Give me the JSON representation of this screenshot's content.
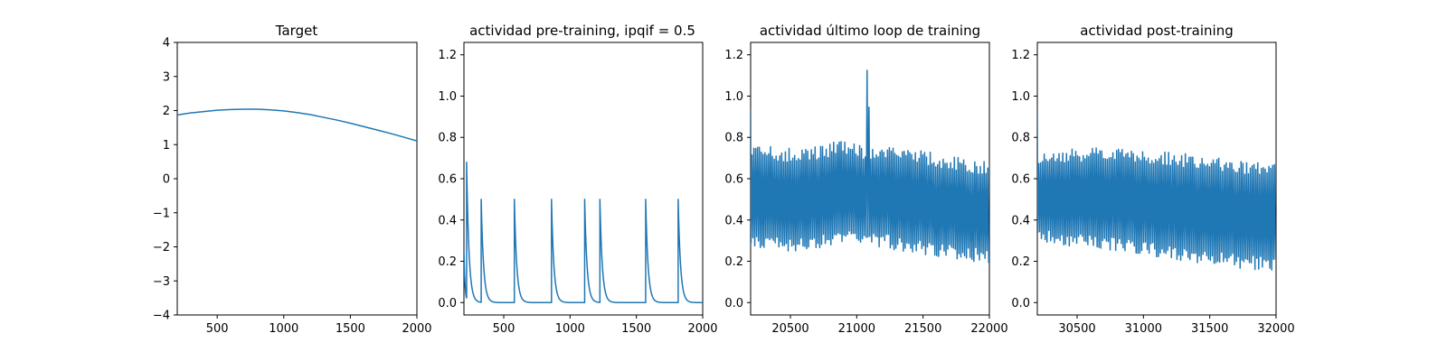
{
  "colors": {
    "line": "#1f77b4",
    "axes": "#000000",
    "background": "#ffffff"
  },
  "chart_data": [
    {
      "type": "line",
      "title": "Target",
      "xlim": [
        200,
        2000
      ],
      "ylim": [
        -4,
        4
      ],
      "xticks": [
        500,
        1000,
        1500,
        2000
      ],
      "xtick_labels": [
        "500",
        "1000",
        "1500",
        "2000"
      ],
      "yticks": [
        -4,
        -3,
        -2,
        -1,
        0,
        1,
        2,
        3,
        4
      ],
      "ytick_labels": [
        "−4",
        "−3",
        "−2",
        "−1",
        "0",
        "1",
        "2",
        "3",
        "4"
      ],
      "grid": false,
      "series": [
        {
          "x": [
            200,
            300,
            400,
            500,
            600,
            700,
            750,
            800,
            900,
            1000,
            1100,
            1200,
            1300,
            1400,
            1500,
            1600,
            1700,
            1800,
            1900,
            2000
          ],
          "y": [
            1.87,
            1.93,
            1.97,
            2.01,
            2.03,
            2.04,
            2.04,
            2.04,
            2.02,
            1.99,
            1.94,
            1.88,
            1.8,
            1.72,
            1.63,
            1.53,
            1.43,
            1.33,
            1.22,
            1.11
          ]
        }
      ]
    },
    {
      "type": "line",
      "title": "actividad pre-training, ipqif = 0.5",
      "xlim": [
        200,
        2000
      ],
      "ylim": [
        -0.06,
        1.26
      ],
      "xticks": [
        500,
        1000,
        1500,
        2000
      ],
      "xtick_labels": [
        "500",
        "1000",
        "1500",
        "2000"
      ],
      "yticks": [
        0.0,
        0.2,
        0.4,
        0.6,
        0.8,
        1.0,
        1.2
      ],
      "ytick_labels": [
        "0.0",
        "0.2",
        "0.4",
        "0.6",
        "0.8",
        "1.0",
        "1.2"
      ],
      "grid": false,
      "signal": {
        "kind": "spikes",
        "x_start": 200,
        "x_end": 2000,
        "initial": 0.25,
        "spike_times": [
          220,
          330,
          580,
          860,
          1110,
          1225,
          1570,
          1815
        ],
        "spike_heights": [
          0.68,
          0.5,
          0.5,
          0.5,
          0.5,
          0.5,
          0.5,
          0.5
        ],
        "decay_tau": 18
      }
    },
    {
      "type": "line",
      "title": "actividad último loop de training",
      "xlim": [
        20200,
        22000
      ],
      "ylim": [
        -0.06,
        1.26
      ],
      "xticks": [
        20500,
        21000,
        21500,
        22000
      ],
      "xtick_labels": [
        "20500",
        "21000",
        "21500",
        "22000"
      ],
      "yticks": [
        0.0,
        0.2,
        0.4,
        0.6,
        0.8,
        1.0,
        1.2
      ],
      "ytick_labels": [
        "0.0",
        "0.2",
        "0.4",
        "0.6",
        "0.8",
        "1.0",
        "1.2"
      ],
      "grid": false,
      "signal": {
        "kind": "oscillation",
        "x_start": 20200,
        "x_end": 22000,
        "period": 14,
        "start_value": 0.94,
        "peak_x": [
          20200,
          20600,
          20900,
          21050,
          21400,
          21700,
          22000
        ],
        "peak_y": [
          0.77,
          0.74,
          0.79,
          0.76,
          0.75,
          0.71,
          0.68
        ],
        "trough_x": [
          20200,
          20600,
          21000,
          21500,
          22000
        ],
        "trough_y": [
          0.25,
          0.25,
          0.29,
          0.23,
          0.19
        ],
        "burst": {
          "x": 21080,
          "peak": 1.16
        }
      }
    },
    {
      "type": "line",
      "title": "actividad post-training",
      "xlim": [
        30200,
        32000
      ],
      "ylim": [
        -0.06,
        1.26
      ],
      "xticks": [
        30500,
        31000,
        31500,
        32000
      ],
      "xtick_labels": [
        "30500",
        "31000",
        "31500",
        "32000"
      ],
      "yticks": [
        0.0,
        0.2,
        0.4,
        0.6,
        0.8,
        1.0,
        1.2
      ],
      "ytick_labels": [
        "0.0",
        "0.2",
        "0.4",
        "0.6",
        "0.8",
        "1.0",
        "1.2"
      ],
      "grid": false,
      "signal": {
        "kind": "oscillation",
        "x_start": 30200,
        "x_end": 32000,
        "period": 14,
        "start_value": 0.95,
        "peak_x": [
          30200,
          30500,
          30800,
          31000,
          31500,
          32000
        ],
        "peak_y": [
          0.74,
          0.75,
          0.75,
          0.74,
          0.71,
          0.67
        ],
        "trough_x": [
          30200,
          30600,
          31000,
          31500,
          32000
        ],
        "trough_y": [
          0.29,
          0.26,
          0.23,
          0.18,
          0.15
        ]
      }
    }
  ]
}
